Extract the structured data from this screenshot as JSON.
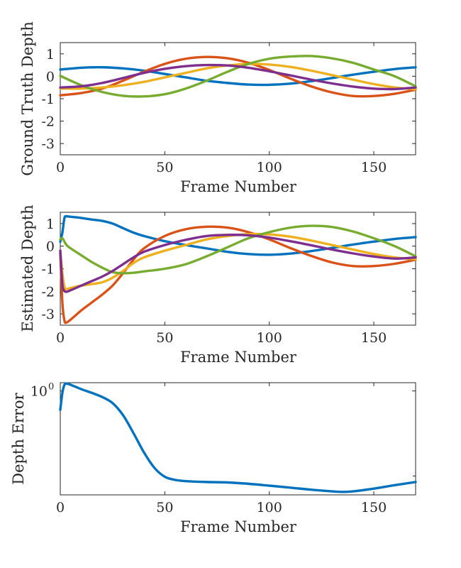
{
  "chart_data": [
    {
      "type": "line",
      "title": "",
      "xlabel": "Frame Number",
      "ylabel": "Ground Truth Depth",
      "xlim": [
        0,
        170
      ],
      "ylim": [
        -3.5,
        1.5
      ],
      "xticks": [
        0,
        50,
        100,
        150
      ],
      "yticks": [
        1,
        0,
        -1,
        -2,
        -3
      ],
      "xtick_labels": [
        "0",
        "50",
        "100",
        "150"
      ],
      "ytick_labels": [
        "1",
        "0",
        "-1",
        "-2",
        "-3"
      ],
      "x": [
        0,
        10,
        20,
        30,
        40,
        50,
        60,
        70,
        80,
        90,
        100,
        110,
        120,
        130,
        140,
        150,
        160,
        170
      ],
      "series": [
        {
          "name": "blue",
          "color": "#0072BD",
          "values": [
            0.3,
            0.38,
            0.4,
            0.35,
            0.25,
            0.1,
            -0.05,
            -0.2,
            -0.3,
            -0.37,
            -0.38,
            -0.33,
            -0.22,
            -0.08,
            0.07,
            0.2,
            0.32,
            0.4
          ]
        },
        {
          "name": "red",
          "color": "#D95319",
          "values": [
            -0.85,
            -0.75,
            -0.55,
            -0.2,
            0.2,
            0.55,
            0.78,
            0.86,
            0.8,
            0.6,
            0.28,
            -0.1,
            -0.45,
            -0.72,
            -0.88,
            -0.88,
            -0.78,
            -0.6
          ]
        },
        {
          "name": "yellow",
          "color": "#EDB120",
          "values": [
            -0.55,
            -0.55,
            -0.5,
            -0.4,
            -0.25,
            -0.05,
            0.15,
            0.35,
            0.48,
            0.55,
            0.52,
            0.42,
            0.25,
            0.05,
            -0.15,
            -0.35,
            -0.5,
            -0.58
          ]
        },
        {
          "name": "green",
          "color": "#77AC30",
          "values": [
            0.02,
            -0.4,
            -0.7,
            -0.87,
            -0.9,
            -0.8,
            -0.55,
            -0.2,
            0.2,
            0.55,
            0.78,
            0.88,
            0.9,
            0.8,
            0.6,
            0.3,
            0.0,
            -0.45
          ]
        },
        {
          "name": "purple",
          "color": "#7E2F8E",
          "values": [
            -0.5,
            -0.45,
            -0.3,
            -0.08,
            0.15,
            0.33,
            0.45,
            0.5,
            0.48,
            0.38,
            0.22,
            0.04,
            -0.15,
            -0.32,
            -0.46,
            -0.55,
            -0.57,
            -0.5
          ]
        }
      ]
    },
    {
      "type": "line",
      "title": "",
      "xlabel": "Frame Number",
      "ylabel": "Estimated Depth",
      "xlim": [
        0,
        170
      ],
      "ylim": [
        -3.5,
        1.5
      ],
      "xticks": [
        0,
        50,
        100,
        150
      ],
      "yticks": [
        1,
        0,
        -1,
        -2,
        -3
      ],
      "xtick_labels": [
        "0",
        "50",
        "100",
        "150"
      ],
      "ytick_labels": [
        "1",
        "0",
        "-1",
        "-2",
        "-3"
      ],
      "x": [
        0,
        1,
        2,
        3,
        5,
        10,
        15,
        20,
        25,
        30,
        35,
        40,
        50,
        60,
        70,
        80,
        90,
        100,
        110,
        120,
        130,
        140,
        150,
        160,
        170
      ],
      "series": [
        {
          "name": "blue",
          "color": "#0072BD",
          "values": [
            0.2,
            0.6,
            1.25,
            1.32,
            1.3,
            1.25,
            1.18,
            1.12,
            1.0,
            0.8,
            0.6,
            0.45,
            0.22,
            0.05,
            -0.1,
            -0.25,
            -0.35,
            -0.38,
            -0.33,
            -0.22,
            -0.08,
            0.07,
            0.2,
            0.32,
            0.4
          ]
        },
        {
          "name": "red",
          "color": "#D95319",
          "values": [
            -0.3,
            -2.5,
            -3.3,
            -3.38,
            -3.25,
            -2.85,
            -2.5,
            -2.15,
            -1.75,
            -1.2,
            -0.6,
            -0.1,
            0.45,
            0.75,
            0.86,
            0.82,
            0.62,
            0.3,
            -0.08,
            -0.43,
            -0.72,
            -0.88,
            -0.88,
            -0.78,
            -0.6
          ]
        },
        {
          "name": "yellow",
          "color": "#EDB120",
          "values": [
            -0.2,
            -1.2,
            -1.8,
            -1.9,
            -1.85,
            -1.75,
            -1.68,
            -1.6,
            -1.4,
            -1.1,
            -0.75,
            -0.5,
            -0.2,
            0.05,
            0.3,
            0.45,
            0.53,
            0.52,
            0.42,
            0.25,
            0.05,
            -0.15,
            -0.35,
            -0.5,
            -0.58
          ]
        },
        {
          "name": "green",
          "color": "#77AC30",
          "values": [
            0.3,
            0.35,
            0.2,
            0.05,
            -0.1,
            -0.4,
            -0.7,
            -0.95,
            -1.15,
            -1.2,
            -1.18,
            -1.12,
            -1.0,
            -0.8,
            -0.45,
            -0.05,
            0.35,
            0.62,
            0.82,
            0.9,
            0.85,
            0.65,
            0.35,
            0.0,
            -0.45
          ]
        },
        {
          "name": "purple",
          "color": "#7E2F8E",
          "values": [
            -0.2,
            -1.7,
            -1.98,
            -2.02,
            -1.95,
            -1.75,
            -1.55,
            -1.35,
            -1.1,
            -0.8,
            -0.5,
            -0.25,
            0.05,
            0.28,
            0.45,
            0.5,
            0.48,
            0.38,
            0.22,
            0.04,
            -0.15,
            -0.32,
            -0.46,
            -0.55,
            -0.5
          ]
        }
      ]
    },
    {
      "type": "line",
      "title": "",
      "xlabel": "Frame Number",
      "ylabel": "Depth Error",
      "yscale": "log",
      "xlim": [
        0,
        170
      ],
      "ylim": [
        0.06,
        1.25
      ],
      "xticks": [
        0,
        50,
        100,
        150
      ],
      "yticks": [
        1
      ],
      "xtick_labels": [
        "0",
        "50",
        "100",
        "150"
      ],
      "ytick_labels": [
        "10"
      ],
      "ytick_exponents": [
        "0"
      ],
      "x": [
        0,
        1,
        2,
        3,
        5,
        10,
        15,
        20,
        25,
        30,
        35,
        40,
        45,
        50,
        55,
        60,
        70,
        80,
        90,
        100,
        110,
        120,
        130,
        135,
        140,
        150,
        160,
        170
      ],
      "series": [
        {
          "name": "blue",
          "color": "#0072BD",
          "values": [
            0.6,
            0.95,
            1.18,
            1.22,
            1.18,
            1.05,
            0.95,
            0.85,
            0.72,
            0.52,
            0.32,
            0.19,
            0.125,
            0.098,
            0.09,
            0.087,
            0.085,
            0.084,
            0.081,
            0.077,
            0.073,
            0.069,
            0.066,
            0.065,
            0.066,
            0.071,
            0.078,
            0.085
          ]
        }
      ]
    }
  ]
}
